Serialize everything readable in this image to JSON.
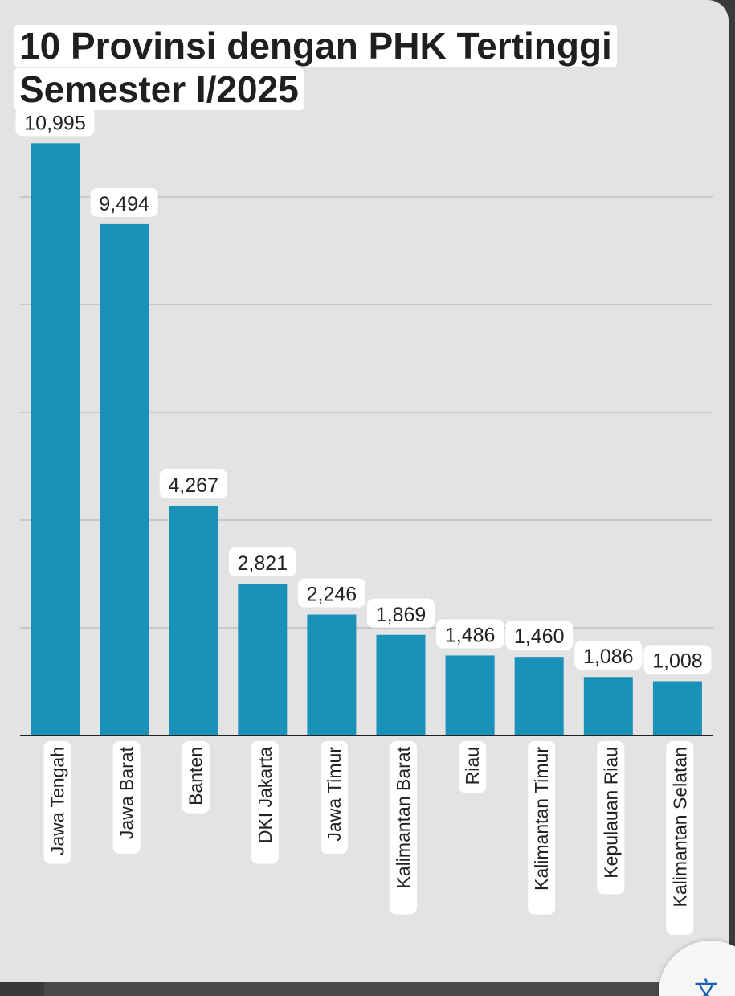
{
  "chart_data": {
    "type": "bar",
    "title_lines": [
      "10 Provinsi dengan PHK Tertinggi",
      "Semester I/2025"
    ],
    "categories": [
      "Jawa Tengah",
      "Jawa Barat",
      "Banten",
      "DKI Jakarta",
      "Jawa Timur",
      "Kalimantan Barat",
      "Riau",
      "Kalimantan Timur",
      "Kepulauan Riau",
      "Kalimantan Selatan"
    ],
    "values": [
      10995,
      9494,
      4267,
      2821,
      2246,
      1869,
      1486,
      1460,
      1086,
      1008
    ],
    "value_labels": [
      "10,995",
      "9,494",
      "4,267",
      "2,821",
      "2,246",
      "1,869",
      "1,486",
      "1,460",
      "1,086",
      "1,008"
    ],
    "ylim": [
      0,
      11000
    ],
    "gridlines": [
      2000,
      4000,
      6000,
      8000,
      10000
    ],
    "grid": true,
    "legend": false,
    "bar_color": "#1a91b8"
  },
  "fab": {
    "icon": "translate-icon",
    "glyph": "文"
  }
}
